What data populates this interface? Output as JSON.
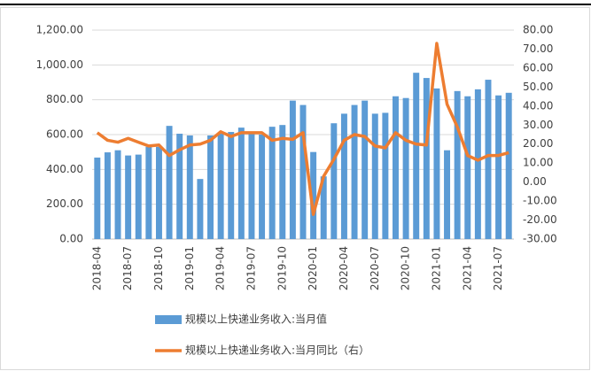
{
  "chart_data": {
    "type": "bar-line",
    "categories": [
      "2018-04",
      null,
      null,
      "2018-07",
      null,
      null,
      "2018-10",
      null,
      null,
      "2019-01",
      null,
      null,
      "2019-04",
      null,
      null,
      "2019-07",
      null,
      null,
      "2019-10",
      null,
      null,
      "2020-01",
      null,
      null,
      "2020-04",
      null,
      null,
      "2020-07",
      null,
      null,
      "2020-10",
      null,
      null,
      "2021-01",
      null,
      null,
      "2021-04",
      null,
      null,
      "2021-07",
      null
    ],
    "series": [
      {
        "name": "规模以上快递业务收入:当月值",
        "color": "#5b9bd5",
        "type": "bar",
        "values": [
          468,
          498,
          510,
          480,
          485,
          530,
          530,
          650,
          605,
          595,
          345,
          595,
          605,
          615,
          640,
          615,
          600,
          645,
          655,
          795,
          770,
          500,
          360,
          665,
          720,
          770,
          795,
          720,
          725,
          820,
          810,
          955,
          925,
          865,
          510,
          850,
          820,
          860,
          915,
          825,
          840
        ]
      },
      {
        "name": "规模以上快递业务收入:当月同比（右）",
        "color": "#ed7d31",
        "type": "line",
        "axis": "y2",
        "values": [
          26,
          22,
          21,
          23,
          21,
          19,
          19.5,
          14,
          17,
          19.5,
          20,
          22,
          26.5,
          24,
          26,
          26,
          26,
          22,
          23,
          22.5,
          26,
          -17,
          3,
          12,
          22,
          25,
          24,
          19,
          18,
          26,
          22,
          20,
          19.5,
          73,
          41,
          29,
          14,
          11.5,
          14,
          14,
          15.5
        ]
      }
    ],
    "ylim": [
      0,
      1200
    ],
    "yticks": [
      {
        "value": 0,
        "label": "0.00"
      },
      {
        "value": 200,
        "label": "200.00"
      },
      {
        "value": 400,
        "label": "400.00"
      },
      {
        "value": 600,
        "label": "600.00"
      },
      {
        "value": 800,
        "label": "800.00"
      },
      {
        "value": 1000,
        "label": "1,000.00"
      },
      {
        "value": 1200,
        "label": "1,200.00"
      }
    ],
    "y2lim": [
      -30,
      80
    ],
    "y2ticks": [
      {
        "value": -30,
        "label": "-30.00"
      },
      {
        "value": -20,
        "label": "-20.00"
      },
      {
        "value": -10,
        "label": "-10.00"
      },
      {
        "value": 0,
        "label": "0.00"
      },
      {
        "value": 10,
        "label": "10.00"
      },
      {
        "value": 20,
        "label": "20.00"
      },
      {
        "value": 30,
        "label": "30.00"
      },
      {
        "value": 40,
        "label": "40.00"
      },
      {
        "value": 50,
        "label": "50.00"
      },
      {
        "value": 60,
        "label": "60.00"
      },
      {
        "value": 70,
        "label": "70.00"
      },
      {
        "value": 80,
        "label": "80.00"
      }
    ],
    "grid": true
  }
}
